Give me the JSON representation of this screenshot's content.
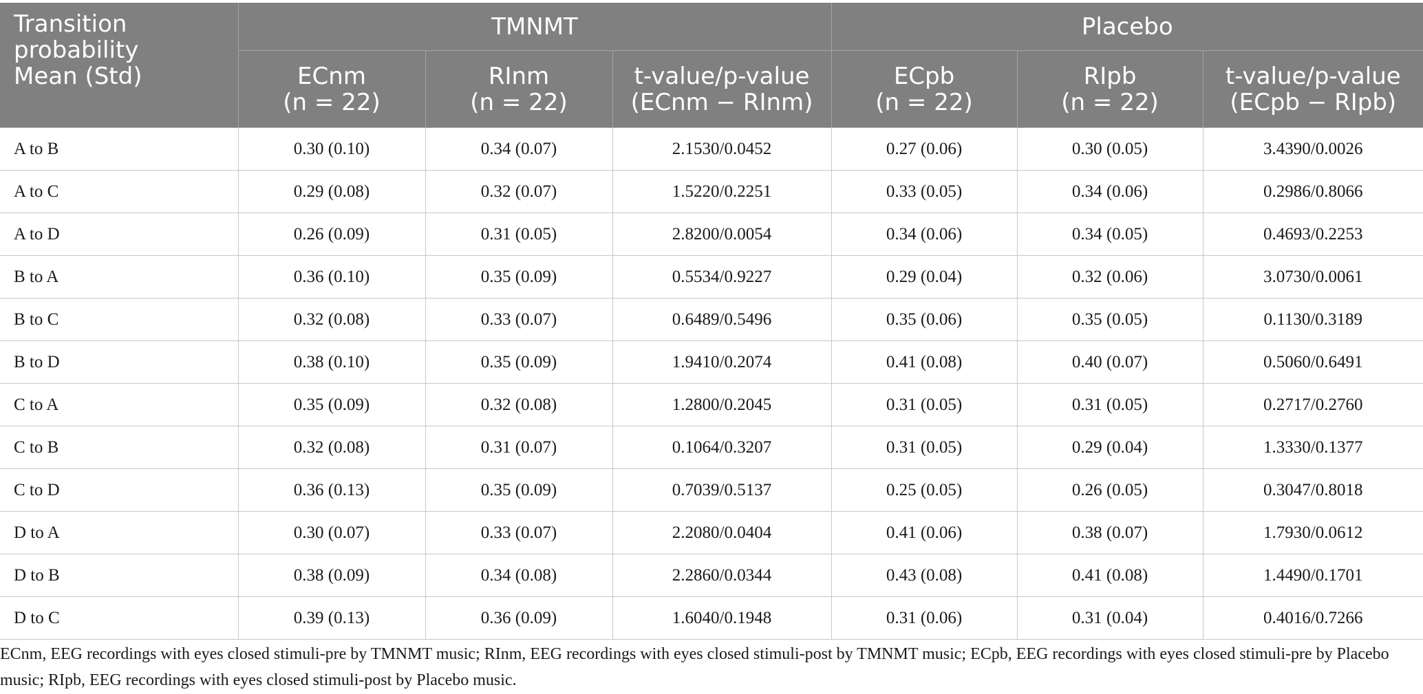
{
  "table": {
    "corner_header": [
      "Transition",
      "probability",
      "Mean (Std)"
    ],
    "groups": [
      "TMNMT",
      "Placebo"
    ],
    "subheaders": [
      {
        "label": "ECnm",
        "n": "(n = 22)"
      },
      {
        "label": "RInm",
        "n": "(n = 22)"
      },
      {
        "label": "t-value/p-value",
        "n": "(ECnm − RInm)"
      },
      {
        "label": "ECpb",
        "n": "(n = 22)"
      },
      {
        "label": "RIpb",
        "n": "(n = 22)"
      },
      {
        "label": "t-value/p-value",
        "n": "(ECpb − RIpb)"
      }
    ],
    "rows": [
      {
        "label": "A to B",
        "cells": [
          "0.30 (0.10)",
          "0.34 (0.07)",
          "2.1530/0.0452",
          "0.27 (0.06)",
          "0.30 (0.05)",
          "3.4390/0.0026"
        ]
      },
      {
        "label": "A to C",
        "cells": [
          "0.29 (0.08)",
          "0.32 (0.07)",
          "1.5220/0.2251",
          "0.33 (0.05)",
          "0.34 (0.06)",
          "0.2986/0.8066"
        ]
      },
      {
        "label": "A to D",
        "cells": [
          "0.26 (0.09)",
          "0.31 (0.05)",
          "2.8200/0.0054",
          "0.34 (0.06)",
          "0.34 (0.05)",
          "0.4693/0.2253"
        ]
      },
      {
        "label": "B to A",
        "cells": [
          "0.36 (0.10)",
          "0.35 (0.09)",
          "0.5534/0.9227",
          "0.29 (0.04)",
          "0.32 (0.06)",
          "3.0730/0.0061"
        ]
      },
      {
        "label": "B to C",
        "cells": [
          "0.32 (0.08)",
          "0.33 (0.07)",
          "0.6489/0.5496",
          "0.35 (0.06)",
          "0.35 (0.05)",
          "0.1130/0.3189"
        ]
      },
      {
        "label": "B to D",
        "cells": [
          "0.38 (0.10)",
          "0.35 (0.09)",
          "1.9410/0.2074",
          "0.41 (0.08)",
          "0.40 (0.07)",
          "0.5060/0.6491"
        ]
      },
      {
        "label": "C to A",
        "cells": [
          "0.35 (0.09)",
          "0.32 (0.08)",
          "1.2800/0.2045",
          "0.31 (0.05)",
          "0.31 (0.05)",
          "0.2717/0.2760"
        ]
      },
      {
        "label": "C to B",
        "cells": [
          "0.32 (0.08)",
          "0.31 (0.07)",
          "0.1064/0.3207",
          "0.31 (0.05)",
          "0.29 (0.04)",
          "1.3330/0.1377"
        ]
      },
      {
        "label": "C to D",
        "cells": [
          "0.36 (0.13)",
          "0.35 (0.09)",
          "0.7039/0.5137",
          "0.25 (0.05)",
          "0.26 (0.05)",
          "0.3047/0.8018"
        ]
      },
      {
        "label": "D to A",
        "cells": [
          "0.30 (0.07)",
          "0.33 (0.07)",
          "2.2080/0.0404",
          "0.41 (0.06)",
          "0.38 (0.07)",
          "1.7930/0.0612"
        ]
      },
      {
        "label": "D to B",
        "cells": [
          "0.38 (0.09)",
          "0.34 (0.08)",
          "2.2860/0.0344",
          "0.43 (0.08)",
          "0.41 (0.08)",
          "1.4490/0.1701"
        ]
      },
      {
        "label": "D to C",
        "cells": [
          "0.39 (0.13)",
          "0.36 (0.09)",
          "1.6040/0.1948",
          "0.31 (0.06)",
          "0.31 (0.04)",
          "0.4016/0.7266"
        ]
      }
    ],
    "footnote": "ECnm, EEG recordings with eyes closed stimuli-pre by TMNMT music; RInm, EEG recordings with eyes closed stimuli-post by TMNMT music; ECpb, EEG recordings with eyes closed stimuli-pre by Placebo music; RIpb, EEG recordings with eyes closed stimuli-post by Placebo music."
  },
  "colors": {
    "header_background": "#808080",
    "header_text": "#ffffff",
    "grid_line": "#c8c8c8"
  }
}
